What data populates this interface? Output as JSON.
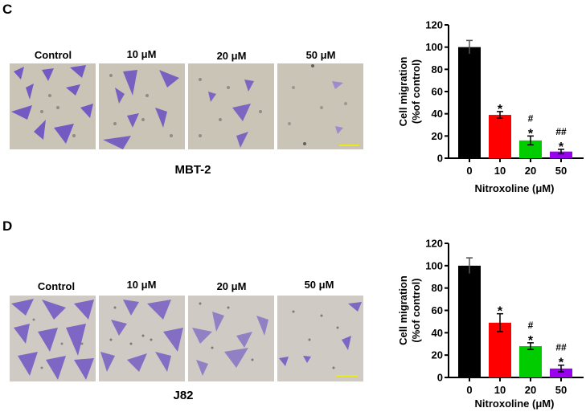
{
  "panels": [
    {
      "letter": "C",
      "cell_line": "MBT-2",
      "image_labels": [
        "Control",
        "10 μM",
        "20 μM",
        "50 μM"
      ],
      "scale_bar_color": "#e8e81a"
    },
    {
      "letter": "D",
      "cell_line": "J82",
      "image_labels": [
        "Control",
        "10 μM",
        "20 μM",
        "50 μM"
      ],
      "scale_bar_color": "#e8e81a"
    }
  ],
  "chart_data": [
    {
      "type": "bar",
      "panel": "C",
      "title": "",
      "categories": [
        "0",
        "10",
        "20",
        "50"
      ],
      "values": [
        100,
        39,
        16,
        6
      ],
      "errors": [
        6,
        3,
        4,
        2
      ],
      "colors": [
        "#000000",
        "#ff0000",
        "#00cc00",
        "#9900ee"
      ],
      "annotations": [
        "",
        "*",
        "#\n*",
        "##\n*"
      ],
      "xlabel": "Nitroxoline (μM)",
      "ylabel": "Cell migration\n(%of control)",
      "yticks": [
        0,
        20,
        40,
        60,
        80,
        100,
        120
      ],
      "ylim": [
        0,
        120
      ],
      "grid": false,
      "legend": "none"
    },
    {
      "type": "bar",
      "panel": "D",
      "title": "",
      "categories": [
        "0",
        "10",
        "20",
        "50"
      ],
      "values": [
        100,
        49,
        28,
        8
      ],
      "errors": [
        7,
        8,
        3,
        3
      ],
      "colors": [
        "#000000",
        "#ff0000",
        "#00cc00",
        "#9900ee"
      ],
      "annotations": [
        "",
        "*",
        "#\n*",
        "##\n*"
      ],
      "xlabel": "Nitroxoline (μM)",
      "ylabel": "Cell migration\n(%of control)",
      "yticks": [
        0,
        20,
        40,
        60,
        80,
        100,
        120
      ],
      "ylim": [
        0,
        120
      ],
      "grid": false,
      "legend": "none"
    }
  ]
}
